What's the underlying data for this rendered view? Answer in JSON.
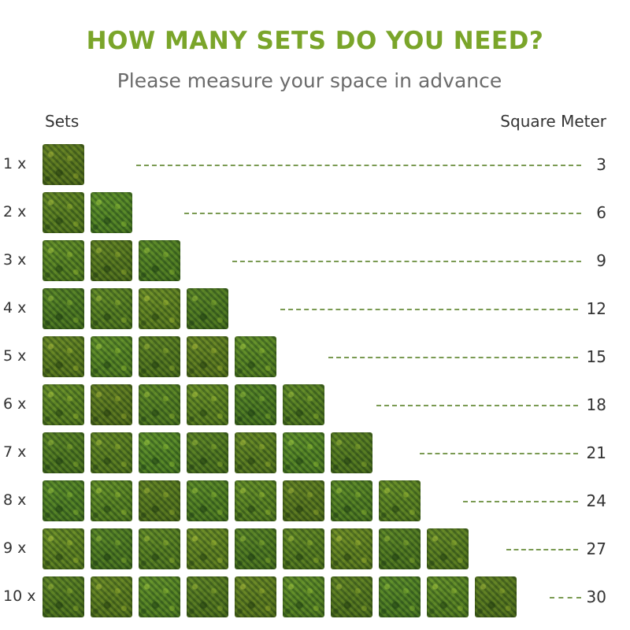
{
  "header": {
    "title": "HOW MANY SETS DO YOU NEED?",
    "subtitle": "Please measure your space in advance"
  },
  "columns": {
    "left": "Sets",
    "right": "Square Meter"
  },
  "rows": [
    {
      "label": "1 x",
      "sets": 1,
      "value": "3"
    },
    {
      "label": "2 x",
      "sets": 2,
      "value": "6"
    },
    {
      "label": "3 x",
      "sets": 3,
      "value": "9"
    },
    {
      "label": "4 x",
      "sets": 4,
      "value": "12"
    },
    {
      "label": "5 x",
      "sets": 5,
      "value": "15"
    },
    {
      "label": "6 x",
      "sets": 6,
      "value": "18"
    },
    {
      "label": "7 x",
      "sets": 7,
      "value": "21"
    },
    {
      "label": "8 x",
      "sets": 8,
      "value": "24"
    },
    {
      "label": "9 x",
      "sets": 9,
      "value": "27"
    },
    {
      "label": "10 x",
      "sets": 10,
      "value": "30"
    }
  ],
  "colors": {
    "title": "#7aa52a",
    "subtitle": "#6b6b6b",
    "dash": "#7a9a52",
    "text": "#333333"
  }
}
